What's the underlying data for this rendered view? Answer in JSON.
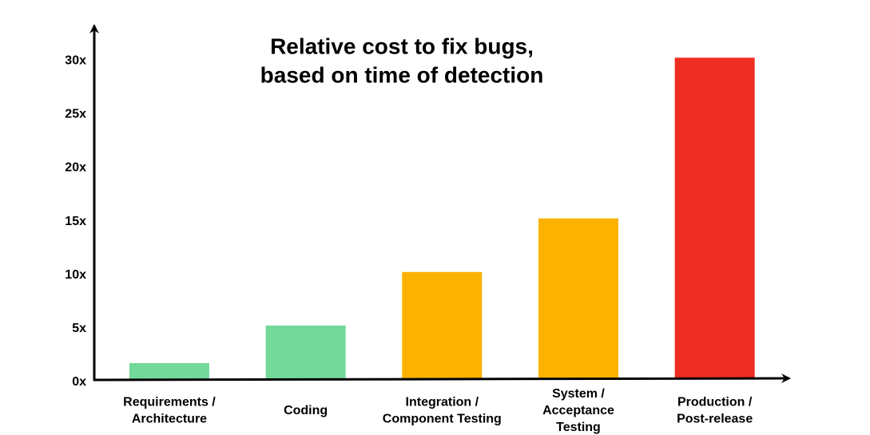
{
  "chart_data": {
    "type": "bar",
    "title": [
      "Relative cost to fix bugs,",
      "based on time of detection"
    ],
    "categories": [
      [
        "Requirements /",
        "Architecture"
      ],
      [
        "Coding"
      ],
      [
        "Integration /",
        "Component Testing"
      ],
      [
        "System /",
        "Acceptance",
        "Testing"
      ],
      [
        "Production /",
        "Post-release"
      ]
    ],
    "values": [
      1.5,
      5,
      10,
      15,
      30
    ],
    "colors": [
      "#72d99a",
      "#72d99a",
      "#fbb200",
      "#fbb200",
      "#ee2e22"
    ],
    "ylim": [
      0,
      33
    ],
    "yticks": [
      {
        "value": 0,
        "label": "0x"
      },
      {
        "value": 5,
        "label": "5x"
      },
      {
        "value": 10,
        "label": "10x"
      },
      {
        "value": 15,
        "label": "15x"
      },
      {
        "value": 20,
        "label": "20x"
      },
      {
        "value": 25,
        "label": "25x"
      },
      {
        "value": 30,
        "label": "30x"
      }
    ],
    "grid": false
  }
}
